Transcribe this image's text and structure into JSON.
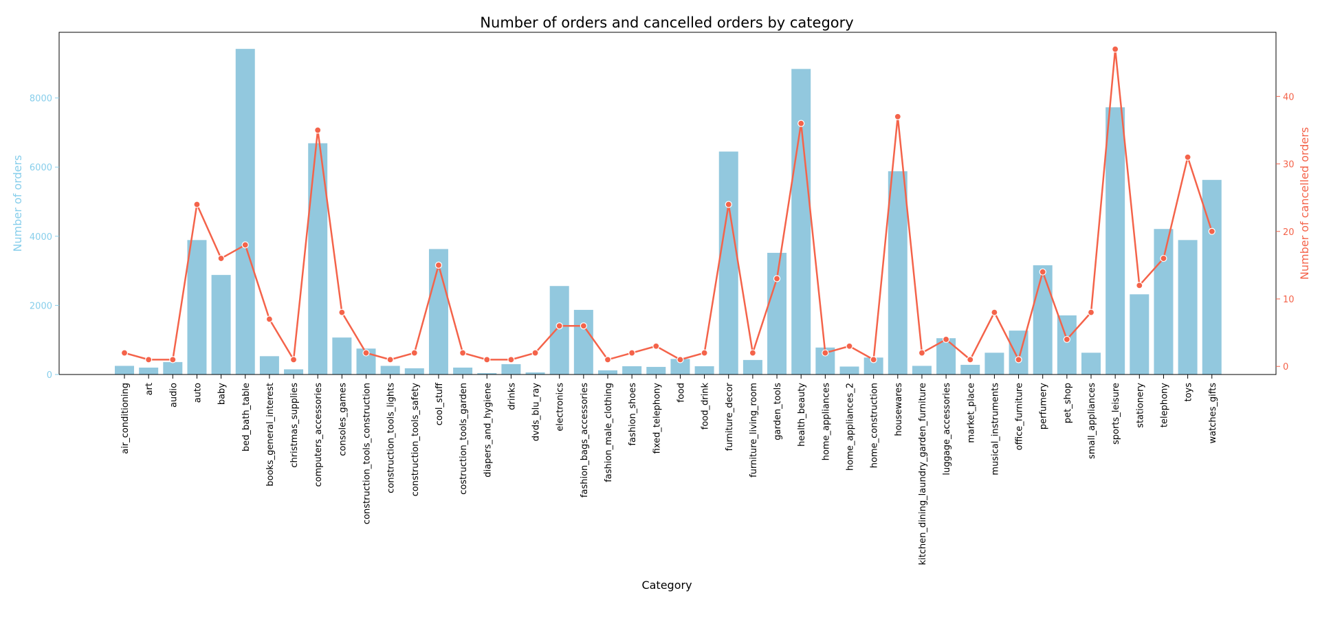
{
  "chart_data": {
    "type": "bar",
    "title": "Number of orders and cancelled orders by category",
    "xlabel": "Category",
    "ylabel": "Number of orders",
    "y2label": "Number of cancelled orders",
    "ylim": [
      0,
      9900
    ],
    "y2lim": [
      -1.2,
      49.5
    ],
    "yticks": [
      0,
      2000,
      4000,
      6000,
      8000
    ],
    "y2ticks": [
      0,
      10,
      20,
      30,
      40
    ],
    "grid": false,
    "colors": {
      "bars": "#92c8de",
      "line": "#f4634a",
      "left_axis": "#87ceeb",
      "right_axis": "#f4634a"
    },
    "categories": [
      "air_conditioning",
      "art",
      "audio",
      "auto",
      "baby",
      "bed_bath_table",
      "books_general_interest",
      "christmas_supplies",
      "computers_accessories",
      "consoles_games",
      "construction_tools_construction",
      "construction_tools_lights",
      "construction_tools_safety",
      "cool_stuff",
      "costruction_tools_garden",
      "diapers_and_hygiene",
      "drinks",
      "dvds_blu_ray",
      "electronics",
      "fashion_bags_accessories",
      "fashion_male_clothing",
      "fashion_shoes",
      "fixed_telephony",
      "food",
      "food_drink",
      "furniture_decor",
      "furniture_living_room",
      "garden_tools",
      "health_beauty",
      "home_appliances",
      "home_appliances_2",
      "home_construction",
      "housewares",
      "kitchen_dining_laundry_garden_furniture",
      "luggage_accessories",
      "market_place",
      "musical_instruments",
      "office_furniture",
      "perfumery",
      "pet_shop",
      "small_appliances",
      "sports_leisure",
      "stationery",
      "telephony",
      "toys",
      "watches_gifts"
    ],
    "series": [
      {
        "name": "",
        "kind": "bar",
        "axis": "left",
        "values": [
          250,
          200,
          360,
          3890,
          2880,
          9420,
          530,
          150,
          6690,
          1070,
          750,
          250,
          180,
          3630,
          200,
          40,
          300,
          60,
          2560,
          1870,
          120,
          240,
          220,
          450,
          240,
          6450,
          420,
          3520,
          8840,
          780,
          230,
          490,
          5880,
          250,
          1050,
          280,
          630,
          1270,
          3160,
          1710,
          630,
          7730,
          2320,
          4210,
          3890,
          5630
        ]
      },
      {
        "name": "",
        "kind": "line",
        "axis": "right",
        "values": [
          2,
          1,
          1,
          24,
          16,
          18,
          7,
          1,
          35,
          8,
          2,
          1,
          2,
          15,
          2,
          1,
          1,
          2,
          6,
          6,
          1,
          2,
          3,
          1,
          2,
          24,
          2,
          13,
          36,
          2,
          3,
          1,
          37,
          2,
          4,
          1,
          8,
          1,
          14,
          4,
          8,
          47,
          12,
          16,
          31,
          20
        ]
      }
    ]
  }
}
